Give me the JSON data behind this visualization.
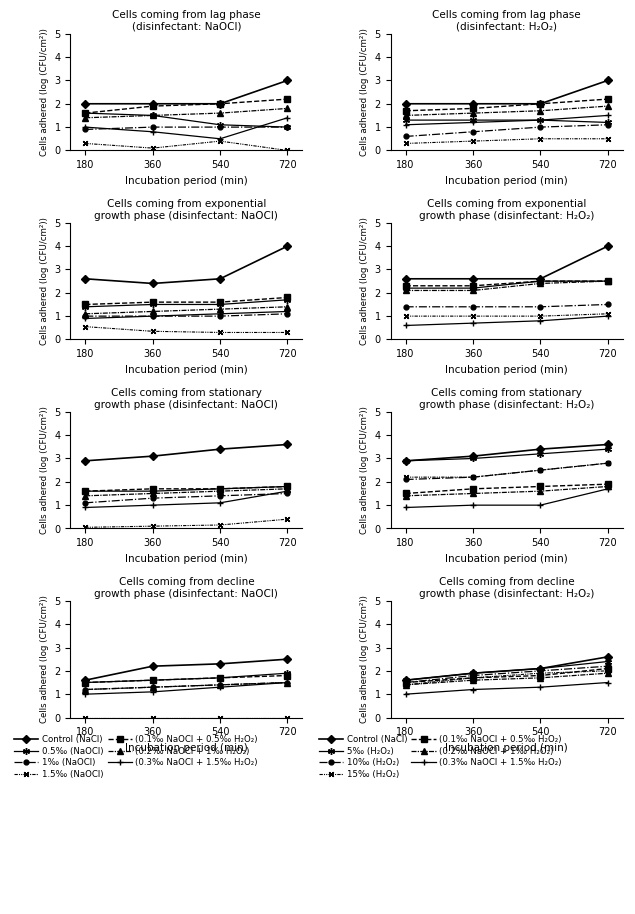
{
  "x": [
    180,
    360,
    540,
    720
  ],
  "panels": {
    "lag_NaOCl": {
      "title": "Cells coming from lag phase\n(disinfectant: NaOCl)",
      "series": {
        "s1": [
          2.0,
          2.0,
          2.0,
          3.0
        ],
        "s2": [
          1.6,
          1.5,
          1.1,
          1.0
        ],
        "s3": [
          0.9,
          1.0,
          1.0,
          1.0
        ],
        "s4": [
          0.3,
          0.1,
          0.4,
          0.0
        ],
        "s5": [
          1.6,
          1.9,
          2.0,
          2.2
        ],
        "s6": [
          1.4,
          1.5,
          1.6,
          1.8
        ],
        "s7": [
          1.0,
          0.8,
          0.5,
          1.4
        ]
      }
    },
    "lag_H2O2": {
      "title": "Cells coming from lag phase\n(disinfectant: H₂O₂)",
      "series": {
        "s1": [
          2.0,
          2.0,
          2.0,
          3.0
        ],
        "s2": [
          1.3,
          1.3,
          1.3,
          1.2
        ],
        "s3": [
          0.6,
          0.8,
          1.0,
          1.1
        ],
        "s4": [
          0.3,
          0.4,
          0.5,
          0.5
        ],
        "s5": [
          1.7,
          1.8,
          2.0,
          2.2
        ],
        "s6": [
          1.5,
          1.6,
          1.7,
          1.9
        ],
        "s7": [
          1.1,
          1.2,
          1.3,
          1.5
        ]
      }
    },
    "exp_NaOCl": {
      "title": "Cells coming from exponential\ngrowth phase (disinfectant: NaOCl)",
      "series": {
        "s1": [
          2.6,
          2.4,
          2.6,
          4.0
        ],
        "s2": [
          1.4,
          1.5,
          1.5,
          1.7
        ],
        "s3": [
          1.0,
          1.0,
          1.0,
          1.1
        ],
        "s4": [
          0.55,
          0.35,
          0.3,
          0.3
        ],
        "s5": [
          1.5,
          1.6,
          1.6,
          1.8
        ],
        "s6": [
          1.1,
          1.2,
          1.3,
          1.4
        ],
        "s7": [
          0.9,
          1.0,
          1.1,
          1.2
        ]
      }
    },
    "exp_H2O2": {
      "title": "Cells coming from exponential\ngrowth phase (disinfectant: H₂O₂)",
      "series": {
        "s1": [
          2.6,
          2.6,
          2.6,
          4.0
        ],
        "s2": [
          2.2,
          2.2,
          2.5,
          2.5
        ],
        "s3": [
          1.4,
          1.4,
          1.4,
          1.5
        ],
        "s4": [
          1.0,
          1.0,
          1.0,
          1.1
        ],
        "s5": [
          2.3,
          2.3,
          2.5,
          2.5
        ],
        "s6": [
          2.1,
          2.1,
          2.4,
          2.5
        ],
        "s7": [
          0.6,
          0.7,
          0.8,
          1.0
        ]
      }
    },
    "stat_NaOCl": {
      "title": "Cells coming from stationary\ngrowth phase (disinfectant: NaOCl)",
      "series": {
        "s1": [
          2.9,
          3.1,
          3.4,
          3.6
        ],
        "s2": [
          1.6,
          1.6,
          1.7,
          1.8
        ],
        "s3": [
          1.1,
          1.3,
          1.4,
          1.5
        ],
        "s4": [
          0.05,
          0.1,
          0.15,
          0.4
        ],
        "s5": [
          1.6,
          1.7,
          1.7,
          1.8
        ],
        "s6": [
          1.4,
          1.5,
          1.6,
          1.7
        ],
        "s7": [
          0.9,
          1.0,
          1.1,
          1.6
        ]
      }
    },
    "stat_H2O2": {
      "title": "Cells coming from stationary\ngrowth phase (disinfectant: H₂O₂)",
      "series": {
        "s1": [
          2.9,
          3.1,
          3.4,
          3.6
        ],
        "s2": [
          2.9,
          3.0,
          3.2,
          3.4
        ],
        "s3": [
          2.1,
          2.2,
          2.5,
          2.8
        ],
        "s4": [
          2.2,
          2.2,
          2.5,
          2.8
        ],
        "s5": [
          1.5,
          1.7,
          1.8,
          1.9
        ],
        "s6": [
          1.4,
          1.5,
          1.6,
          1.8
        ],
        "s7": [
          0.9,
          1.0,
          1.0,
          1.7
        ]
      }
    },
    "dec_NaOCl": {
      "title": "Cells coming from decline\ngrowth phase (disinfectant: NaOCl)",
      "series": {
        "s1": [
          1.6,
          2.2,
          2.3,
          2.5
        ],
        "s2": [
          1.5,
          1.6,
          1.7,
          1.9
        ],
        "s3": [
          1.2,
          1.3,
          1.4,
          1.5
        ],
        "s4": [
          0.0,
          0.0,
          0.0,
          0.0
        ],
        "s5": [
          1.5,
          1.6,
          1.7,
          1.8
        ],
        "s6": [
          1.2,
          1.3,
          1.4,
          1.5
        ],
        "s7": [
          1.0,
          1.1,
          1.3,
          1.5
        ]
      }
    },
    "dec_H2O2": {
      "title": "Cells coming from decline\ngrowth phase (disinfectant: H₂O₂)",
      "series": {
        "s1": [
          1.6,
          1.9,
          2.1,
          2.6
        ],
        "s2": [
          1.6,
          1.9,
          2.1,
          2.4
        ],
        "s3": [
          1.5,
          1.8,
          2.0,
          2.2
        ],
        "s4": [
          1.4,
          1.7,
          1.9,
          2.0
        ],
        "s5": [
          1.5,
          1.7,
          1.8,
          2.1
        ],
        "s6": [
          1.4,
          1.6,
          1.7,
          1.9
        ],
        "s7": [
          1.0,
          1.2,
          1.3,
          1.5
        ]
      }
    }
  },
  "ylim": [
    0,
    5
  ],
  "yticks": [
    0,
    1,
    2,
    3,
    4,
    5
  ],
  "xlabel": "Incubation period (min)",
  "ylabel": "Cells adhered (log (CFU/cm²))",
  "xticks": [
    180,
    360,
    540,
    720
  ],
  "left_legend": [
    "Control (NaCl)",
    "0.5‰ (NaOCl)",
    "1‰ (NaOCl)",
    "1.5‰ (NaOCl)",
    "(0.1‰ NaOCl + 0.5‰ H₂O₂)",
    "(0.2‰ NaOCl + 1‰ H₂O₂)",
    "(0.3‰ NaOCl + 1.5‰ H₂O₂)"
  ],
  "right_legend": [
    "Control (NaCl)",
    "5‰ (H₂O₂)",
    "10‰ (H₂O₂)",
    "15‰ (H₂O₂)",
    "(0.1‰ NaOCl + 0.5‰ H₂O₂)",
    "(0.2‰ NaOCl + 1‰ H₂O₂)",
    "(0.3‰ NaOCl + 1.5‰ H₂O₂)"
  ]
}
